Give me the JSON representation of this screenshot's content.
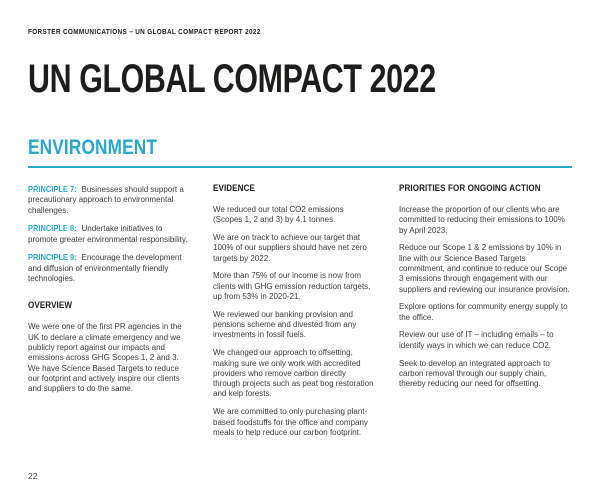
{
  "page": {
    "eyebrow": "FORSTER COMMUNICATIONS – UN GLOBAL COMPACT REPORT 2022",
    "title": "UN GLOBAL COMPACT 2022",
    "section_heading": "ENVIRONMENT",
    "page_number": "22",
    "accent_color": "#2ba6c9"
  },
  "columns": {
    "principles": {
      "items": [
        {
          "label": "PRINCIPLE 7:",
          "text": "Businesses should support a precautionary approach to environmental challenges."
        },
        {
          "label": "PRINCIPLE 8:",
          "text": "Undertake initiatives to promote greater environmental responsibility."
        },
        {
          "label": "PRINCIPLE 9:",
          "text": "Encourage the development and diffusion of environmentally friendly technologies."
        }
      ],
      "overview_heading": "OVERVIEW",
      "overview_text": "We were one of the first PR agencies in the UK to declare a climate emergency and we publicly report against our impacts and emissions across GHG Scopes 1, 2 and 3. We have Science Based Targets to reduce our footprint and actively inspire our clients and suppliers to do the same."
    },
    "evidence": {
      "heading": "EVIDENCE",
      "paragraphs": [
        "We reduced our total CO2 emissions (Scopes 1, 2 and 3) by 4.1 tonnes.",
        "We are on track to achieve our target that 100% of our suppliers should have net zero targets by 2022.",
        "More than 75% of our income is now from clients with GHG emission reduction targets, up from 53% in 2020-21.",
        "We reviewed our banking provision and pensions scheme and divested from any investments in fossil fuels.",
        "We changed our approach to offsetting, making sure we only work with accredited providers who remove carbon directly through projects such as peat bog restoration and kelp forests.",
        "We are committed to only purchasing plant-based foodstuffs for the office and company meals to help reduce our carbon footprint."
      ]
    },
    "priorities": {
      "heading": "PRIORITIES FOR ONGOING ACTION",
      "paragraphs": [
        "Increase the proportion of our clients who are committed to reducing their emissions to 100% by April 2023.",
        "Reduce our Scope 1 & 2 emissions by 10% in line with our Science Based Targets commitment, and continue to reduce our Scope 3 emissions through engagement with our suppliers and reviewing our insurance provision.",
        "Explore options for community energy supply to the office.",
        "Review our use of IT – including emails – to identify ways in which we can reduce CO2.",
        "Seek to develop an integrated approach to carbon removal through our supply chain, thereby reducing our need for offsetting."
      ]
    }
  }
}
